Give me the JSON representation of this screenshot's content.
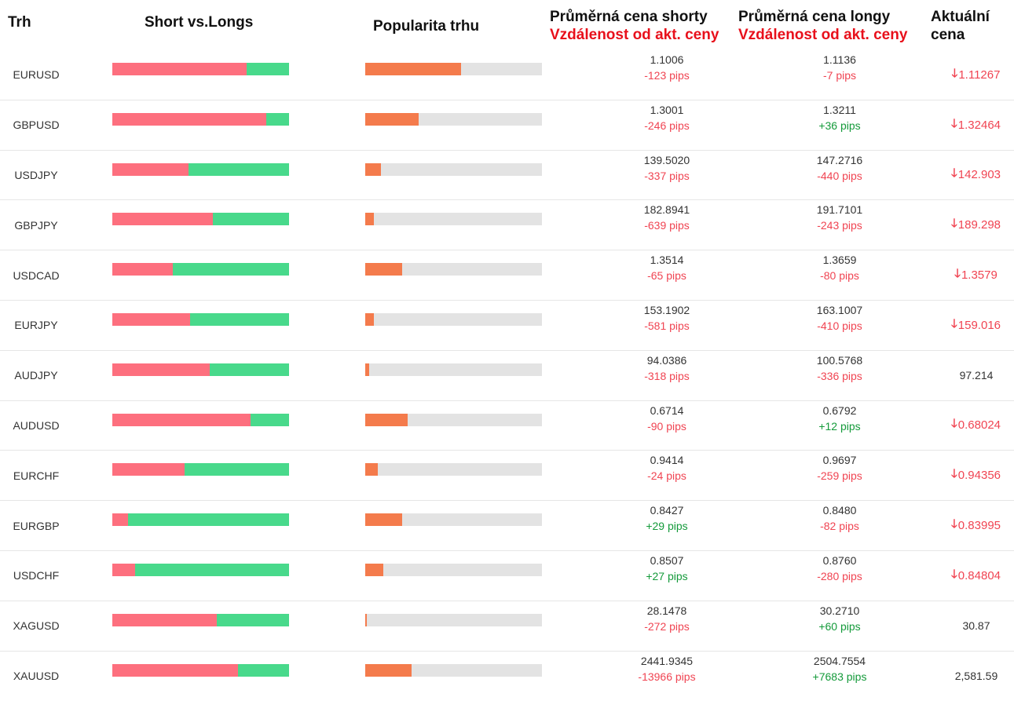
{
  "header": {
    "market": "Trh",
    "short_vs_longs": "Short vs.Longs",
    "popularity": "Popularita trhu",
    "avg_short_line1": "Průměrná cena shorty",
    "avg_short_line2": "Vzdálenost od akt. ceny",
    "avg_long_line1": "Průměrná cena longy",
    "avg_long_line2": "Vzdálenost od akt. ceny",
    "current_line1": "Aktuální",
    "current_line2": "cena"
  },
  "colors": {
    "short": "#fd6f7e",
    "long": "#48d98b",
    "popularity": "#f47b4c",
    "negative": "#f04452",
    "positive": "#149a3a"
  },
  "rows": [
    {
      "market": "EURUSD",
      "short_pct": 76,
      "popularity_pct": 54,
      "short_price": "1.1006",
      "short_pips": "-123 pips",
      "short_sign": "neg",
      "long_price": "1.1136",
      "long_pips": "-7 pips",
      "long_sign": "neg",
      "current": "1.11267",
      "trend": "down",
      "arrow": "🡓"
    },
    {
      "market": "GBPUSD",
      "short_pct": 87,
      "popularity_pct": 30,
      "short_price": "1.3001",
      "short_pips": "-246 pips",
      "short_sign": "neg",
      "long_price": "1.3211",
      "long_pips": "+36 pips",
      "long_sign": "pos",
      "current": "1.32464",
      "trend": "down",
      "arrow": "🡓"
    },
    {
      "market": "USDJPY",
      "short_pct": 43,
      "popularity_pct": 9,
      "short_price": "139.5020",
      "short_pips": "-337 pips",
      "short_sign": "neg",
      "long_price": "147.2716",
      "long_pips": "-440 pips",
      "long_sign": "neg",
      "current": "142.903",
      "trend": "down",
      "arrow": "🡓"
    },
    {
      "market": "GBPJPY",
      "short_pct": 57,
      "popularity_pct": 5,
      "short_price": "182.8941",
      "short_pips": "-639 pips",
      "short_sign": "neg",
      "long_price": "191.7101",
      "long_pips": "-243 pips",
      "long_sign": "neg",
      "current": "189.298",
      "trend": "down",
      "arrow": "🡓"
    },
    {
      "market": "USDCAD",
      "short_pct": 34,
      "popularity_pct": 21,
      "short_price": "1.3514",
      "short_pips": "-65 pips",
      "short_sign": "neg",
      "long_price": "1.3659",
      "long_pips": "-80 pips",
      "long_sign": "neg",
      "current": "1.3579",
      "trend": "down",
      "arrow": "🡓"
    },
    {
      "market": "EURJPY",
      "short_pct": 44,
      "popularity_pct": 5,
      "short_price": "153.1902",
      "short_pips": "-581 pips",
      "short_sign": "neg",
      "long_price": "163.1007",
      "long_pips": "-410 pips",
      "long_sign": "neg",
      "current": "159.016",
      "trend": "down",
      "arrow": "🡓"
    },
    {
      "market": "AUDJPY",
      "short_pct": 55,
      "popularity_pct": 2,
      "short_price": "94.0386",
      "short_pips": "-318 pips",
      "short_sign": "neg",
      "long_price": "100.5768",
      "long_pips": "-336 pips",
      "long_sign": "neg",
      "current": "97.214",
      "trend": "flat",
      "arrow": ""
    },
    {
      "market": "AUDUSD",
      "short_pct": 78,
      "popularity_pct": 24,
      "short_price": "0.6714",
      "short_pips": "-90 pips",
      "short_sign": "neg",
      "long_price": "0.6792",
      "long_pips": "+12 pips",
      "long_sign": "pos",
      "current": "0.68024",
      "trend": "down",
      "arrow": "🡓"
    },
    {
      "market": "EURCHF",
      "short_pct": 41,
      "popularity_pct": 7,
      "short_price": "0.9414",
      "short_pips": "-24 pips",
      "short_sign": "neg",
      "long_price": "0.9697",
      "long_pips": "-259 pips",
      "long_sign": "neg",
      "current": "0.94356",
      "trend": "down",
      "arrow": "🡓"
    },
    {
      "market": "EURGBP",
      "short_pct": 9,
      "popularity_pct": 21,
      "short_price": "0.8427",
      "short_pips": "+29 pips",
      "short_sign": "pos",
      "long_price": "0.8480",
      "long_pips": "-82 pips",
      "long_sign": "neg",
      "current": "0.83995",
      "trend": "down",
      "arrow": "🡓"
    },
    {
      "market": "USDCHF",
      "short_pct": 13,
      "popularity_pct": 10,
      "short_price": "0.8507",
      "short_pips": "+27 pips",
      "short_sign": "pos",
      "long_price": "0.8760",
      "long_pips": "-280 pips",
      "long_sign": "neg",
      "current": "0.84804",
      "trend": "down",
      "arrow": "🡓"
    },
    {
      "market": "XAGUSD",
      "short_pct": 59,
      "popularity_pct": 1,
      "short_price": "28.1478",
      "short_pips": "-272 pips",
      "short_sign": "neg",
      "long_price": "30.2710",
      "long_pips": "+60 pips",
      "long_sign": "pos",
      "current": "30.87",
      "trend": "flat",
      "arrow": ""
    },
    {
      "market": "XAUUSD",
      "short_pct": 71,
      "popularity_pct": 26,
      "short_price": "2441.9345",
      "short_pips": "-13966 pips",
      "short_sign": "neg",
      "long_price": "2504.7554",
      "long_pips": "+7683 pips",
      "long_sign": "pos",
      "current": "2,581.59",
      "trend": "flat",
      "arrow": ""
    }
  ]
}
